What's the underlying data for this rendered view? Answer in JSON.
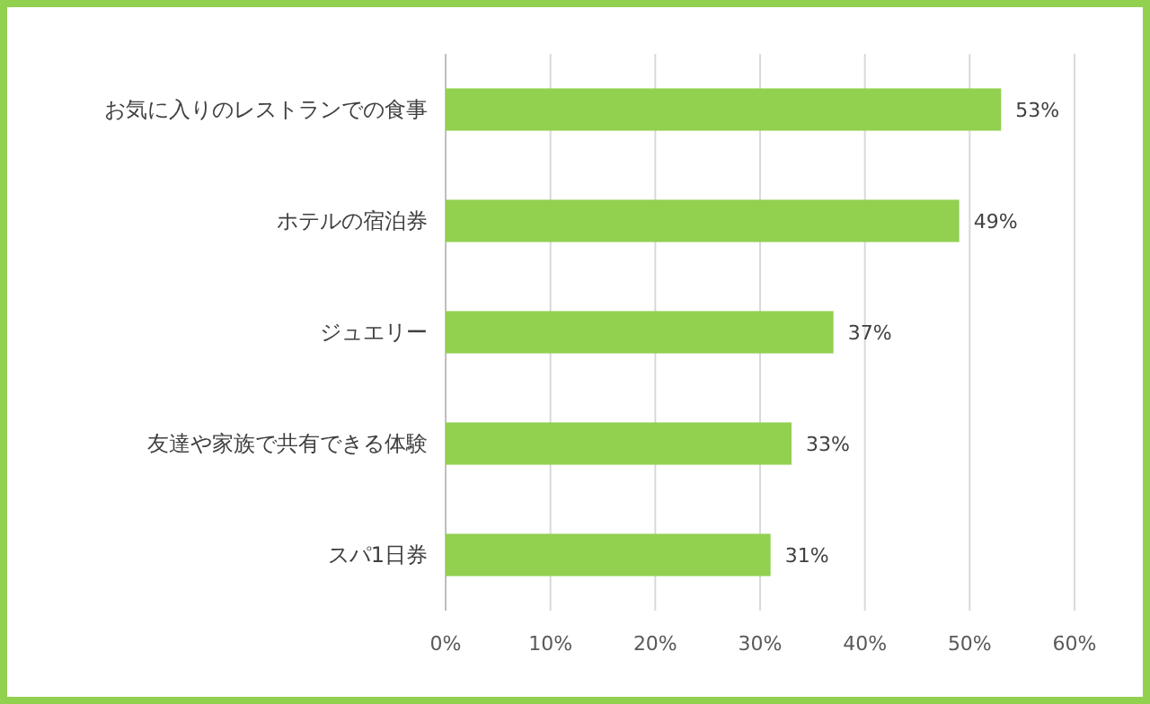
{
  "chart_data": {
    "type": "bar",
    "orientation": "horizontal",
    "categories": [
      "お気に入りのレストランでの食事",
      "ホテルの宿泊券",
      "ジュエリー",
      "友達や家族で共有できる体験",
      "スパ1日券"
    ],
    "values": [
      53,
      49,
      37,
      33,
      31
    ],
    "value_labels": [
      "53%",
      "49%",
      "37%",
      "33%",
      "31%"
    ],
    "color": "#92d050",
    "xlim": [
      0,
      60
    ],
    "xticks": [
      {
        "value": 0,
        "label": "0%"
      },
      {
        "value": 10,
        "label": "10%"
      },
      {
        "value": 20,
        "label": "20%"
      },
      {
        "value": 30,
        "label": "30%"
      },
      {
        "value": 40,
        "label": "40%"
      },
      {
        "value": 50,
        "label": "50%"
      },
      {
        "value": 60,
        "label": "60%"
      }
    ],
    "grid": "x"
  }
}
